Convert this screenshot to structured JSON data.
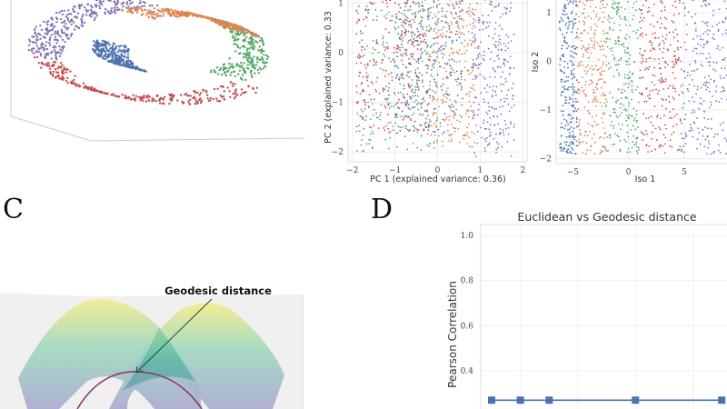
{
  "panels": {
    "C": "C",
    "D": "D"
  },
  "colors": {
    "blue": "#4c72b0",
    "orange": "#dd8452",
    "green": "#55a868",
    "red": "#c44e52",
    "purple": "#8172b3"
  },
  "chart_data": [
    {
      "type": "scatter",
      "xlabel": "PC 1 (explained variance: 0.36)",
      "ylabel": "PC 2 (explained variance: 0.33",
      "xticks": [
        "−2",
        "−1",
        "0",
        "1",
        "2"
      ],
      "yticks": [
        "1",
        "0",
        "−1",
        "−2"
      ],
      "xlim": [
        -2.1,
        2.1
      ],
      "ylim": [
        -2.2,
        1.1
      ],
      "grid": true,
      "series": [
        {
          "color": "#55a868",
          "x_range": [
            -1.9,
            0.0
          ],
          "y_range": [
            -2.0,
            1.1
          ]
        },
        {
          "color": "#c44e52",
          "x_range": [
            -1.9,
            -0.2
          ],
          "y_range": [
            -1.6,
            1.1
          ]
        },
        {
          "color": "#4c72b0",
          "x_range": [
            -1.0,
            0.6
          ],
          "y_range": [
            -1.6,
            1.1
          ]
        },
        {
          "color": "#dd8452",
          "x_range": [
            -0.2,
            0.9
          ],
          "y_range": [
            -1.9,
            1.1
          ]
        },
        {
          "color": "#8172b3",
          "x_range": [
            0.8,
            1.8
          ],
          "y_range": [
            -2.1,
            1.1
          ]
        }
      ]
    },
    {
      "type": "scatter",
      "xlabel": "Iso 1",
      "ylabel": "Iso 2",
      "xticks": [
        "−5",
        "0",
        "5"
      ],
      "yticks": [
        "1",
        "0",
        "−1",
        "−2"
      ],
      "xlim": [
        -6.5,
        9
      ],
      "ylim": [
        -2.1,
        1.3
      ],
      "grid": true,
      "series": [
        {
          "color": "#4c72b0",
          "x_range": [
            -6.2,
            -4.6
          ],
          "y_range": [
            -1.9,
            1.3
          ]
        },
        {
          "color": "#dd8452",
          "x_range": [
            -4.6,
            -2.0
          ],
          "y_range": [
            -1.9,
            1.3
          ]
        },
        {
          "color": "#55a868",
          "x_range": [
            -2.0,
            1.0
          ],
          "y_range": [
            -1.9,
            1.3
          ]
        },
        {
          "color": "#c44e52",
          "x_range": [
            1.0,
            4.7
          ],
          "y_range": [
            -1.9,
            1.3
          ]
        },
        {
          "color": "#8172b3",
          "x_range": [
            4.7,
            9.0
          ],
          "y_range": [
            -1.9,
            1.3
          ]
        }
      ]
    },
    {
      "type": "line",
      "title": "Euclidean vs Geodesic distance",
      "ylabel": "Pearson Correlation",
      "yticks": [
        "1.0",
        "0.8",
        "0.6",
        "0.4"
      ],
      "ylim": [
        0.24,
        1.05
      ],
      "grid": true,
      "series": [
        {
          "color": "#4c72b0",
          "marker": "square",
          "x": [
            0,
            0.5,
            1,
            2.5,
            4
          ],
          "values": [
            0.27,
            0.27,
            0.27,
            0.27,
            0.27
          ]
        }
      ]
    }
  ],
  "panel_c": {
    "annotation": "Geodesic distance"
  }
}
